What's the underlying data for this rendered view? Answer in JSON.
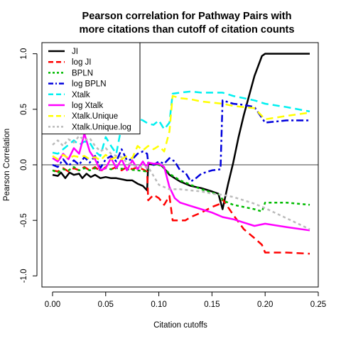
{
  "chart_data": {
    "type": "line",
    "title_lines": [
      "Pearson correlation for Pathway Pairs with",
      "more citations than cutoff of citation counts"
    ],
    "xlabel": "Citation cutoffs",
    "ylabel": "Pearson Correlation",
    "xlim": [
      -0.01,
      0.25
    ],
    "ylim": [
      -1.1,
      1.1
    ],
    "xticks": [
      0.0,
      0.05,
      0.1,
      0.15,
      0.2,
      0.25
    ],
    "xtick_labels": [
      "0.00",
      "0.05",
      "0.10",
      "0.15",
      "0.20",
      "0.25"
    ],
    "yticks": [
      -1.0,
      -0.5,
      0.0,
      0.5,
      1.0
    ],
    "ytick_labels": [
      "-1.0",
      "-0.5",
      "0.0",
      "0.5",
      "1.0"
    ],
    "reference_line_y": 0,
    "grid": false,
    "legend_position": "top-left",
    "series": [
      {
        "name": "JI",
        "color": "#000000",
        "dash": "solid",
        "width": 2.5,
        "points": [
          [
            0.0,
            -0.09
          ],
          [
            0.005,
            -0.1
          ],
          [
            0.008,
            -0.07
          ],
          [
            0.012,
            -0.12
          ],
          [
            0.016,
            -0.07
          ],
          [
            0.02,
            -0.09
          ],
          [
            0.025,
            -0.08
          ],
          [
            0.028,
            -0.12
          ],
          [
            0.032,
            -0.08
          ],
          [
            0.036,
            -0.11
          ],
          [
            0.04,
            -0.09
          ],
          [
            0.045,
            -0.12
          ],
          [
            0.05,
            -0.11
          ],
          [
            0.055,
            -0.12
          ],
          [
            0.06,
            -0.12
          ],
          [
            0.065,
            -0.13
          ],
          [
            0.07,
            -0.14
          ],
          [
            0.075,
            -0.14
          ],
          [
            0.08,
            -0.17
          ],
          [
            0.085,
            -0.19
          ],
          [
            0.089,
            -0.23
          ],
          [
            0.09,
            0.01
          ],
          [
            0.095,
            0.0
          ],
          [
            0.1,
            0.01
          ],
          [
            0.104,
            -0.02
          ],
          [
            0.11,
            -0.09
          ],
          [
            0.12,
            -0.15
          ],
          [
            0.13,
            -0.19
          ],
          [
            0.14,
            -0.21
          ],
          [
            0.15,
            -0.24
          ],
          [
            0.156,
            -0.26
          ],
          [
            0.16,
            -0.4
          ],
          [
            0.165,
            -0.18
          ],
          [
            0.17,
            0.02
          ],
          [
            0.175,
            0.25
          ],
          [
            0.18,
            0.45
          ],
          [
            0.19,
            0.8
          ],
          [
            0.197,
            0.98
          ],
          [
            0.2,
            1.0
          ],
          [
            0.22,
            1.0
          ],
          [
            0.242,
            1.0
          ]
        ]
      },
      {
        "name": "log JI",
        "color": "#ff0000",
        "dash": "long",
        "width": 2.5,
        "points": [
          [
            0.0,
            -0.05
          ],
          [
            0.005,
            -0.06
          ],
          [
            0.01,
            -0.03
          ],
          [
            0.015,
            -0.06
          ],
          [
            0.02,
            -0.03
          ],
          [
            0.025,
            -0.05
          ],
          [
            0.03,
            -0.02
          ],
          [
            0.035,
            -0.05
          ],
          [
            0.04,
            -0.02
          ],
          [
            0.045,
            -0.06
          ],
          [
            0.05,
            -0.02
          ],
          [
            0.055,
            -0.04
          ],
          [
            0.06,
            -0.02
          ],
          [
            0.065,
            -0.05
          ],
          [
            0.07,
            -0.02
          ],
          [
            0.075,
            -0.04
          ],
          [
            0.08,
            -0.02
          ],
          [
            0.085,
            -0.04
          ],
          [
            0.089,
            -0.06
          ],
          [
            0.09,
            -0.32
          ],
          [
            0.095,
            -0.27
          ],
          [
            0.1,
            -0.3
          ],
          [
            0.105,
            -0.36
          ],
          [
            0.11,
            -0.28
          ],
          [
            0.113,
            -0.5
          ],
          [
            0.12,
            -0.5
          ],
          [
            0.125,
            -0.5
          ],
          [
            0.13,
            -0.47
          ],
          [
            0.14,
            -0.43
          ],
          [
            0.15,
            -0.38
          ],
          [
            0.158,
            -0.35
          ],
          [
            0.16,
            -0.31
          ],
          [
            0.17,
            -0.45
          ],
          [
            0.18,
            -0.58
          ],
          [
            0.19,
            -0.66
          ],
          [
            0.197,
            -0.72
          ],
          [
            0.2,
            -0.79
          ],
          [
            0.22,
            -0.79
          ],
          [
            0.242,
            -0.8
          ]
        ]
      },
      {
        "name": "BPLN",
        "color": "#00bb00",
        "dash": "short",
        "width": 2.5,
        "points": [
          [
            0.0,
            -0.05
          ],
          [
            0.005,
            -0.07
          ],
          [
            0.01,
            -0.04
          ],
          [
            0.015,
            -0.05
          ],
          [
            0.02,
            -0.02
          ],
          [
            0.025,
            -0.05
          ],
          [
            0.03,
            -0.03
          ],
          [
            0.035,
            -0.05
          ],
          [
            0.04,
            -0.03
          ],
          [
            0.045,
            -0.05
          ],
          [
            0.05,
            -0.03
          ],
          [
            0.055,
            -0.04
          ],
          [
            0.06,
            -0.03
          ],
          [
            0.07,
            -0.04
          ],
          [
            0.08,
            -0.05
          ],
          [
            0.089,
            -0.06
          ],
          [
            0.09,
            0.02
          ],
          [
            0.095,
            0.0
          ],
          [
            0.1,
            0.0
          ],
          [
            0.105,
            -0.03
          ],
          [
            0.11,
            -0.08
          ],
          [
            0.12,
            -0.14
          ],
          [
            0.13,
            -0.18
          ],
          [
            0.14,
            -0.22
          ],
          [
            0.15,
            -0.25
          ],
          [
            0.158,
            -0.27
          ],
          [
            0.16,
            -0.32
          ],
          [
            0.17,
            -0.36
          ],
          [
            0.18,
            -0.38
          ],
          [
            0.19,
            -0.4
          ],
          [
            0.197,
            -0.42
          ],
          [
            0.2,
            -0.34
          ],
          [
            0.22,
            -0.34
          ],
          [
            0.242,
            -0.36
          ]
        ]
      },
      {
        "name": "log BPLN",
        "color": "#0000dd",
        "dash": "dashdot",
        "width": 2.5,
        "points": [
          [
            0.0,
            0.0
          ],
          [
            0.005,
            -0.02
          ],
          [
            0.01,
            0.05
          ],
          [
            0.015,
            -0.01
          ],
          [
            0.02,
            0.04
          ],
          [
            0.025,
            0.0
          ],
          [
            0.03,
            0.07
          ],
          [
            0.035,
            0.02
          ],
          [
            0.04,
            0.08
          ],
          [
            0.045,
            -0.03
          ],
          [
            0.05,
            0.05
          ],
          [
            0.055,
            0.08
          ],
          [
            0.06,
            0.03
          ],
          [
            0.065,
            0.14
          ],
          [
            0.07,
            0.04
          ],
          [
            0.075,
            0.05
          ],
          [
            0.08,
            0.1
          ],
          [
            0.085,
            0.12
          ],
          [
            0.089,
            0.1
          ],
          [
            0.09,
            0.02
          ],
          [
            0.095,
            0.0
          ],
          [
            0.1,
            0.03
          ],
          [
            0.105,
            0.01
          ],
          [
            0.11,
            0.06
          ],
          [
            0.115,
            0.03
          ],
          [
            0.12,
            -0.05
          ],
          [
            0.125,
            -0.07
          ],
          [
            0.13,
            -0.15
          ],
          [
            0.135,
            -0.12
          ],
          [
            0.14,
            -0.08
          ],
          [
            0.15,
            -0.05
          ],
          [
            0.158,
            -0.04
          ],
          [
            0.16,
            0.58
          ],
          [
            0.17,
            0.55
          ],
          [
            0.18,
            0.54
          ],
          [
            0.19,
            0.52
          ],
          [
            0.2,
            0.38
          ],
          [
            0.22,
            0.4
          ],
          [
            0.242,
            0.4
          ]
        ]
      },
      {
        "name": "Xtalk",
        "color": "#00f0f0",
        "dash": "long",
        "width": 2.5,
        "points": [
          [
            0.0,
            0.11
          ],
          [
            0.005,
            0.1
          ],
          [
            0.01,
            0.14
          ],
          [
            0.015,
            0.18
          ],
          [
            0.02,
            0.22
          ],
          [
            0.025,
            0.18
          ],
          [
            0.03,
            0.21
          ],
          [
            0.035,
            0.2
          ],
          [
            0.04,
            0.12
          ],
          [
            0.045,
            0.08
          ],
          [
            0.05,
            0.25
          ],
          [
            0.055,
            0.17
          ],
          [
            0.06,
            0.1
          ],
          [
            0.065,
            0.35
          ],
          [
            0.07,
            0.3
          ],
          [
            0.075,
            0.4
          ],
          [
            0.08,
            0.42
          ],
          [
            0.085,
            0.4
          ],
          [
            0.09,
            0.37
          ],
          [
            0.095,
            0.36
          ],
          [
            0.1,
            0.4
          ],
          [
            0.105,
            0.32
          ],
          [
            0.11,
            0.38
          ],
          [
            0.113,
            0.64
          ],
          [
            0.12,
            0.65
          ],
          [
            0.13,
            0.66
          ],
          [
            0.14,
            0.65
          ],
          [
            0.15,
            0.65
          ],
          [
            0.16,
            0.65
          ],
          [
            0.17,
            0.62
          ],
          [
            0.18,
            0.6
          ],
          [
            0.19,
            0.58
          ],
          [
            0.2,
            0.55
          ],
          [
            0.22,
            0.52
          ],
          [
            0.242,
            0.48
          ]
        ]
      },
      {
        "name": "log Xtalk",
        "color": "#ff00ff",
        "dash": "solid",
        "width": 2.5,
        "points": [
          [
            0.0,
            0.06
          ],
          [
            0.005,
            0.03
          ],
          [
            0.01,
            0.1
          ],
          [
            0.015,
            0.05
          ],
          [
            0.02,
            0.15
          ],
          [
            0.025,
            0.1
          ],
          [
            0.03,
            0.28
          ],
          [
            0.035,
            0.12
          ],
          [
            0.04,
            0.05
          ],
          [
            0.045,
            -0.05
          ],
          [
            0.05,
            -0.03
          ],
          [
            0.055,
            0.06
          ],
          [
            0.06,
            -0.03
          ],
          [
            0.065,
            0.05
          ],
          [
            0.07,
            -0.05
          ],
          [
            0.075,
            0.04
          ],
          [
            0.08,
            -0.04
          ],
          [
            0.085,
            0.03
          ],
          [
            0.089,
            -0.03
          ],
          [
            0.09,
            0.02
          ],
          [
            0.095,
            0.01
          ],
          [
            0.1,
            0.01
          ],
          [
            0.105,
            -0.02
          ],
          [
            0.11,
            -0.2
          ],
          [
            0.115,
            -0.3
          ],
          [
            0.12,
            -0.34
          ],
          [
            0.13,
            -0.37
          ],
          [
            0.14,
            -0.4
          ],
          [
            0.15,
            -0.43
          ],
          [
            0.16,
            -0.47
          ],
          [
            0.17,
            -0.49
          ],
          [
            0.18,
            -0.52
          ],
          [
            0.19,
            -0.55
          ],
          [
            0.2,
            -0.53
          ],
          [
            0.22,
            -0.56
          ],
          [
            0.242,
            -0.59
          ]
        ]
      },
      {
        "name": "Xtalk.Unique",
        "color": "#ffff00",
        "dash": "long",
        "width": 2.5,
        "points": [
          [
            0.0,
            0.08
          ],
          [
            0.005,
            0.05
          ],
          [
            0.01,
            0.09
          ],
          [
            0.015,
            0.06
          ],
          [
            0.02,
            0.08
          ],
          [
            0.025,
            0.07
          ],
          [
            0.03,
            0.08
          ],
          [
            0.035,
            0.05
          ],
          [
            0.04,
            0.07
          ],
          [
            0.045,
            0.04
          ],
          [
            0.05,
            0.09
          ],
          [
            0.055,
            0.05
          ],
          [
            0.06,
            0.07
          ],
          [
            0.065,
            0.05
          ],
          [
            0.07,
            0.08
          ],
          [
            0.075,
            0.06
          ],
          [
            0.08,
            0.17
          ],
          [
            0.085,
            0.13
          ],
          [
            0.09,
            0.17
          ],
          [
            0.095,
            0.14
          ],
          [
            0.1,
            0.17
          ],
          [
            0.105,
            0.12
          ],
          [
            0.11,
            0.3
          ],
          [
            0.113,
            0.62
          ],
          [
            0.12,
            0.6
          ],
          [
            0.13,
            0.59
          ],
          [
            0.14,
            0.57
          ],
          [
            0.15,
            0.56
          ],
          [
            0.16,
            0.55
          ],
          [
            0.17,
            0.53
          ],
          [
            0.18,
            0.52
          ],
          [
            0.19,
            0.51
          ],
          [
            0.2,
            0.41
          ],
          [
            0.22,
            0.44
          ],
          [
            0.242,
            0.47
          ]
        ]
      },
      {
        "name": "Xtalk.Unique.log",
        "color": "#bbbbbb",
        "dash": "short",
        "width": 2.5,
        "points": [
          [
            0.0,
            0.18
          ],
          [
            0.005,
            0.22
          ],
          [
            0.01,
            0.17
          ],
          [
            0.015,
            0.23
          ],
          [
            0.02,
            0.2
          ],
          [
            0.025,
            0.26
          ],
          [
            0.03,
            0.22
          ],
          [
            0.035,
            0.24
          ],
          [
            0.04,
            0.17
          ],
          [
            0.045,
            0.12
          ],
          [
            0.05,
            0.15
          ],
          [
            0.055,
            0.1
          ],
          [
            0.06,
            0.08
          ],
          [
            0.065,
            0.07
          ],
          [
            0.07,
            0.02
          ],
          [
            0.075,
            0.0
          ],
          [
            0.08,
            -0.02
          ],
          [
            0.085,
            -0.02
          ],
          [
            0.09,
            -0.02
          ],
          [
            0.095,
            -0.1
          ],
          [
            0.1,
            -0.18
          ],
          [
            0.105,
            -0.2
          ],
          [
            0.11,
            -0.22
          ],
          [
            0.12,
            -0.22
          ],
          [
            0.13,
            -0.23
          ],
          [
            0.14,
            -0.24
          ],
          [
            0.15,
            -0.26
          ],
          [
            0.16,
            -0.27
          ],
          [
            0.17,
            -0.29
          ],
          [
            0.18,
            -0.32
          ],
          [
            0.19,
            -0.35
          ],
          [
            0.2,
            -0.39
          ],
          [
            0.22,
            -0.48
          ],
          [
            0.242,
            -0.58
          ]
        ]
      }
    ]
  }
}
